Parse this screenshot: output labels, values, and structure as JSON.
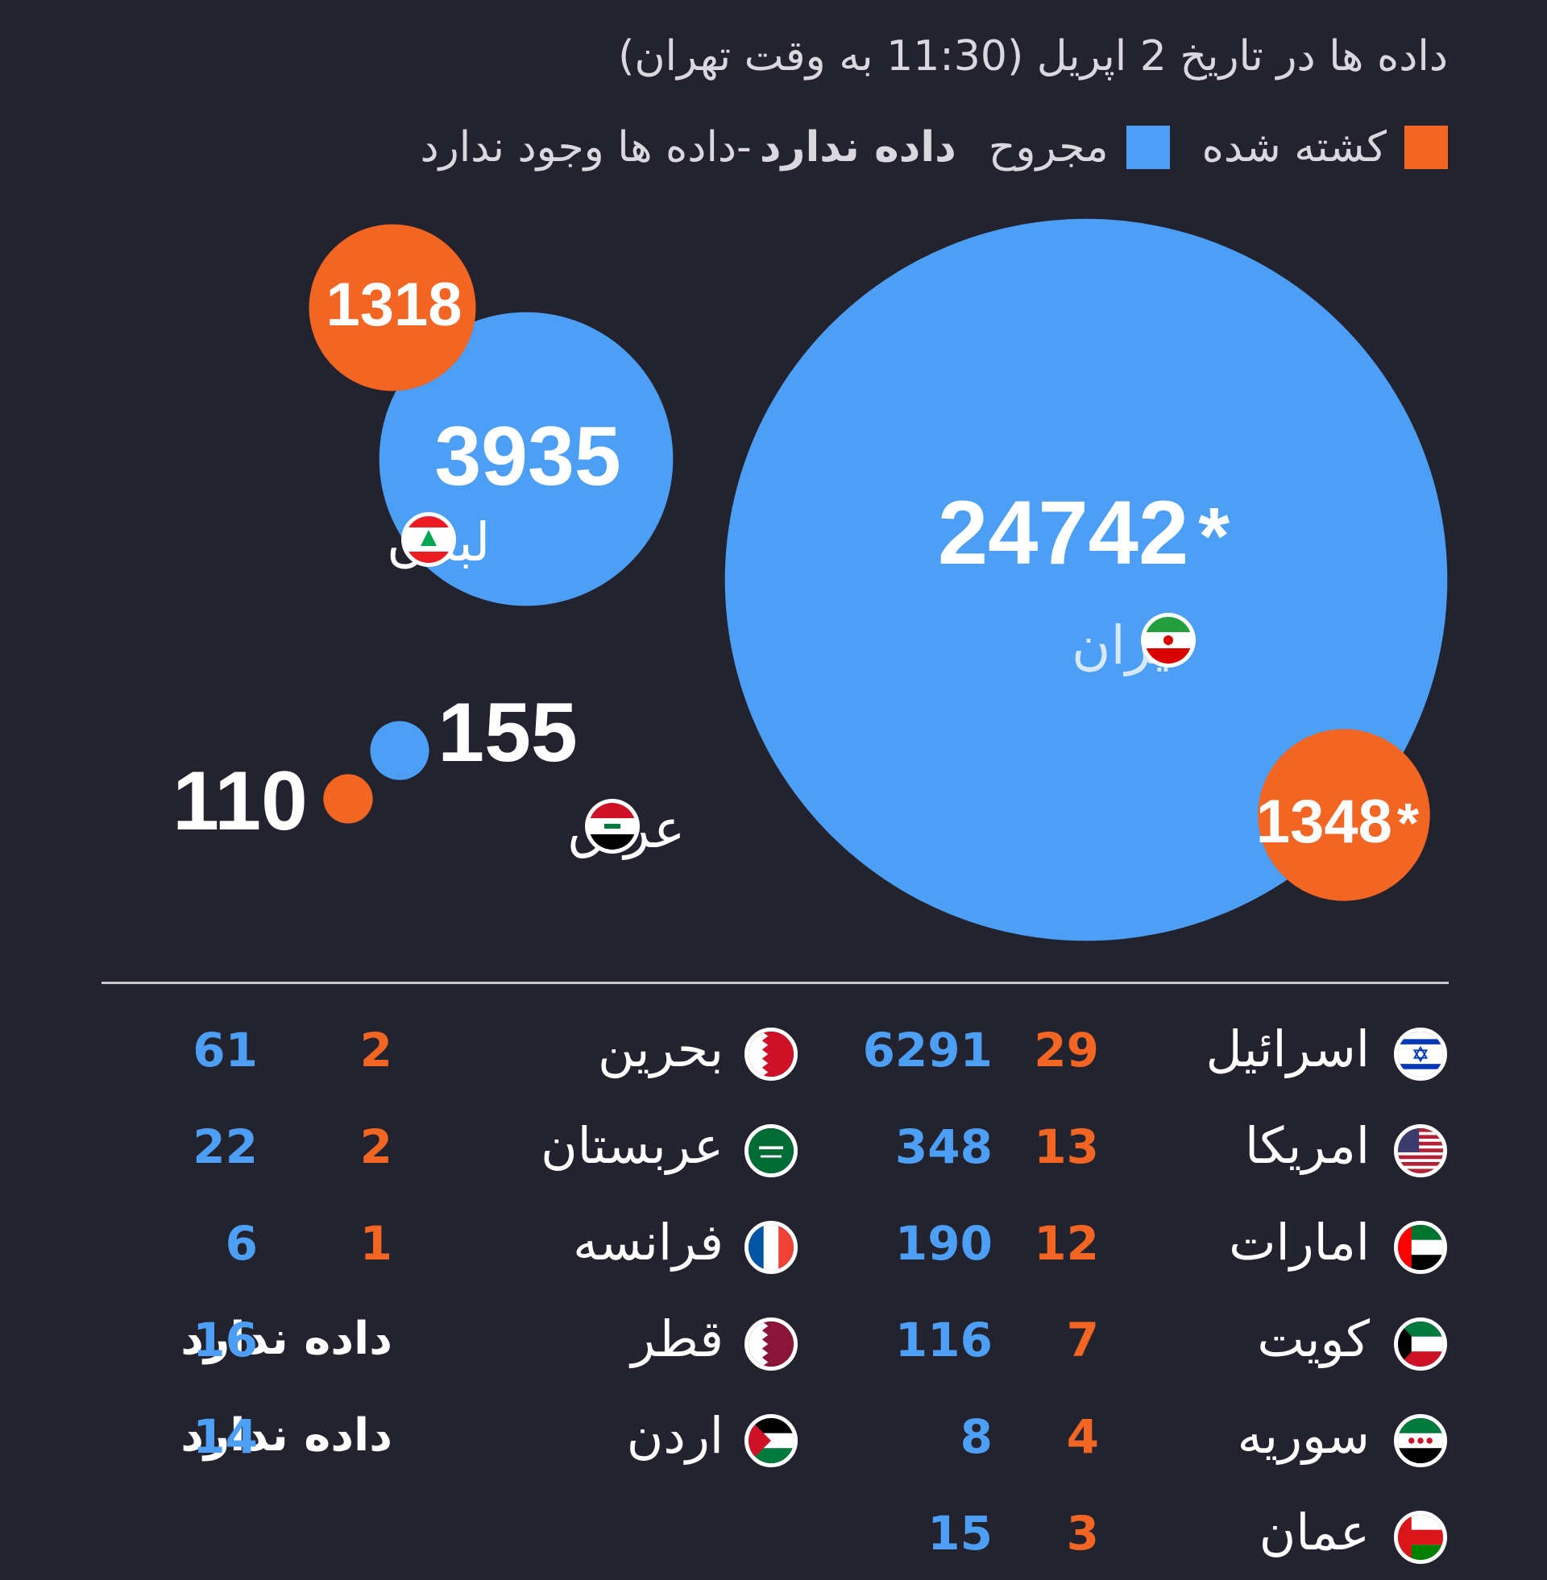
{
  "subtitle": "داده ها در تاریخ 2 اپریل (11:30 به وقت تهران)",
  "legend": {
    "killed": "کشته شده",
    "wounded": "مجروح",
    "no_data_bold": "داده ندارد",
    "no_data_rest": "-داده ها وجود ندارد"
  },
  "colors": {
    "killed": "#f26522",
    "wounded": "#4c9ff5",
    "background": "#22232f"
  },
  "chart_data": {
    "type": "bubble",
    "series": [
      {
        "name": "کشته شده",
        "color": "#f26522"
      },
      {
        "name": "مجروح",
        "color": "#4c9ff5"
      }
    ],
    "countries": [
      {
        "name": "ایران",
        "flag": "iran-flag",
        "wounded": 24742,
        "killed": 1348,
        "wounded_label": "24742",
        "killed_label": "1348",
        "asterisk": "*"
      },
      {
        "name": "لبنان",
        "flag": "lebanon-flag",
        "wounded": 3935,
        "killed": 1318,
        "wounded_label": "3935",
        "killed_label": "1318",
        "asterisk": ""
      },
      {
        "name": "عراق",
        "flag": "iraq-flag",
        "wounded": 155,
        "killed": 110,
        "wounded_label": "155",
        "killed_label": "110",
        "asterisk": ""
      }
    ]
  },
  "table": {
    "right": [
      {
        "name": "اسرائیل",
        "flag": "israel-flag",
        "killed": "29",
        "wounded": "6291"
      },
      {
        "name": "امریکا",
        "flag": "usa-flag",
        "killed": "13",
        "wounded": "348"
      },
      {
        "name": "امارات",
        "flag": "uae-flag",
        "killed": "12",
        "wounded": "190"
      },
      {
        "name": "کویت",
        "flag": "kuwait-flag",
        "killed": "7",
        "wounded": "116"
      },
      {
        "name": "سوریه",
        "flag": "syria-flag",
        "killed": "4",
        "wounded": "8"
      },
      {
        "name": "عمان",
        "flag": "oman-flag",
        "killed": "3",
        "wounded": "15"
      }
    ],
    "left": [
      {
        "name": "بحرین",
        "flag": "bahrain-flag",
        "killed": "2",
        "wounded": "61"
      },
      {
        "name": "عربستان",
        "flag": "saudi-flag",
        "killed": "2",
        "wounded": "22"
      },
      {
        "name": "فرانسه",
        "flag": "france-flag",
        "killed": "1",
        "wounded": "6"
      },
      {
        "name": "قطر",
        "flag": "qatar-flag",
        "killed": "داده ندارد",
        "wounded": "16"
      },
      {
        "name": "اردن",
        "flag": "jordan-flag",
        "killed": "داده ندارد",
        "wounded": "14"
      }
    ]
  }
}
